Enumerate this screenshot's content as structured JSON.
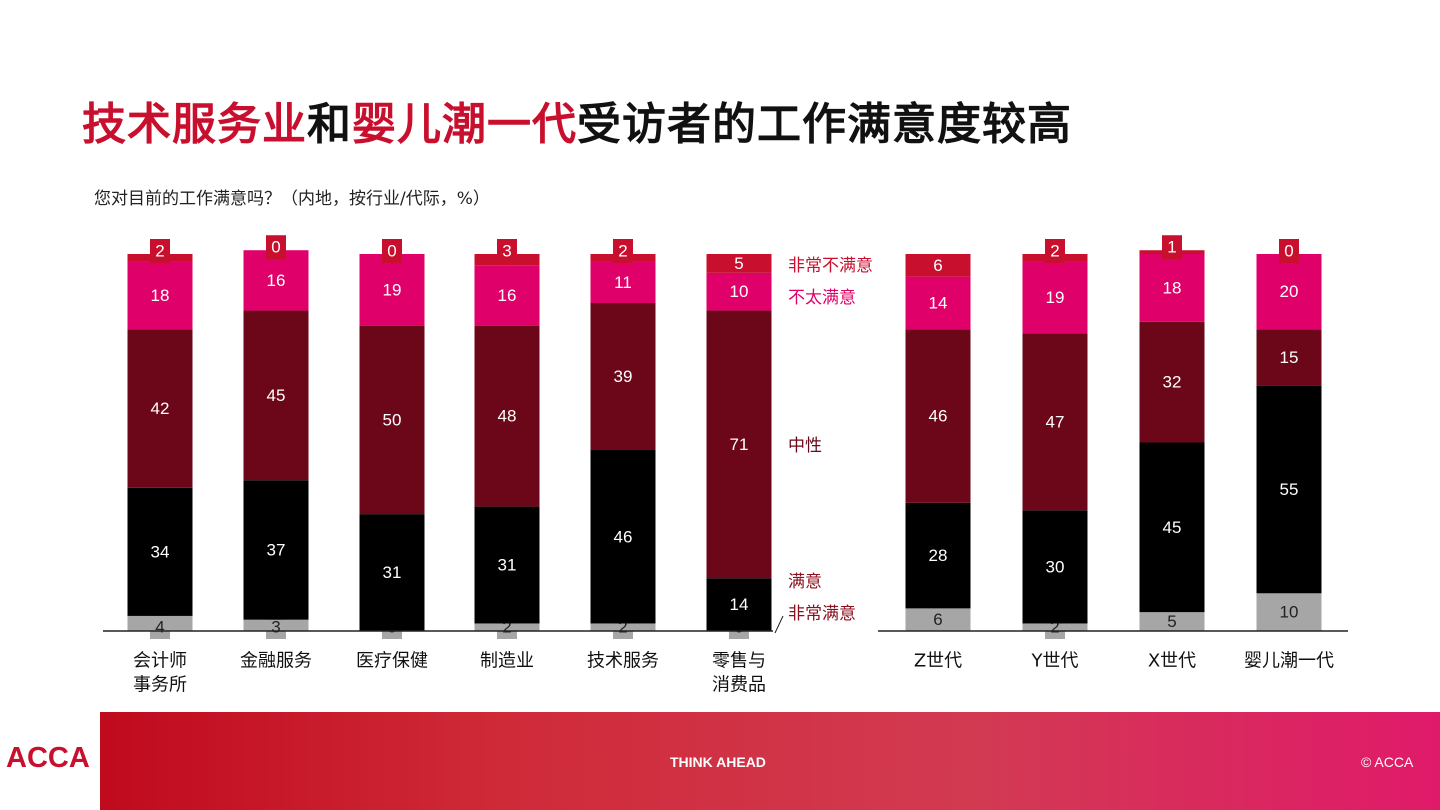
{
  "slide": {
    "title_parts": [
      {
        "text": "技术服务业",
        "highlight": true
      },
      {
        "text": "和",
        "highlight": false
      },
      {
        "text": "婴儿潮一代",
        "highlight": true
      },
      {
        "text": "受访者的工作满意度较高",
        "highlight": false
      }
    ],
    "subtitle": "您对目前的工作满意吗？（内地，按行业/代际，%）"
  },
  "footer": {
    "logo": "ACCA",
    "tagline": "THINK AHEAD",
    "copyright": "© ACCA"
  },
  "colors": {
    "非常满意": "#a6a6a6",
    "满意": "#000000",
    "中性": "#6b0718",
    "不太满意": "#e0006a",
    "非常不满意": "#c8102e",
    "label_中性": "#6b0718",
    "label_不太满意": "#e0006a",
    "label_非常不满意": "#c8102e",
    "label_满意": "#8b1020",
    "label_非常满意": "#8b1020"
  },
  "chart_data": [
    {
      "type": "bar",
      "stacked": true,
      "title": "",
      "unit": "%",
      "categories": [
        [
          "会计师",
          "事务所"
        ],
        [
          "金融服务"
        ],
        [
          "医疗保健"
        ],
        [
          "制造业"
        ],
        [
          "技术服务"
        ],
        [
          "零售与",
          "消费品"
        ]
      ],
      "series": [
        {
          "name": "非常满意",
          "values": [
            4,
            3,
            0,
            2,
            2,
            0
          ]
        },
        {
          "name": "满意",
          "values": [
            34,
            37,
            31,
            31,
            46,
            14
          ]
        },
        {
          "name": "中性",
          "values": [
            42,
            45,
            50,
            48,
            39,
            71
          ]
        },
        {
          "name": "不太满意",
          "values": [
            18,
            16,
            19,
            16,
            11,
            10
          ]
        },
        {
          "name": "非常不满意",
          "values": [
            2,
            0,
            0,
            3,
            2,
            5
          ]
        }
      ],
      "legend_position": "right"
    },
    {
      "type": "bar",
      "stacked": true,
      "title": "",
      "unit": "%",
      "categories": [
        [
          "Z世代"
        ],
        [
          "Y世代"
        ],
        [
          "X世代"
        ],
        [
          "婴儿潮一代"
        ]
      ],
      "series": [
        {
          "name": "非常满意",
          "values": [
            6,
            2,
            5,
            10
          ]
        },
        {
          "name": "满意",
          "values": [
            28,
            30,
            45,
            55
          ]
        },
        {
          "name": "中性",
          "values": [
            46,
            47,
            32,
            15
          ]
        },
        {
          "name": "不太满意",
          "values": [
            14,
            19,
            18,
            20
          ]
        },
        {
          "name": "非常不满意",
          "values": [
            6,
            2,
            1,
            0
          ]
        }
      ]
    }
  ]
}
